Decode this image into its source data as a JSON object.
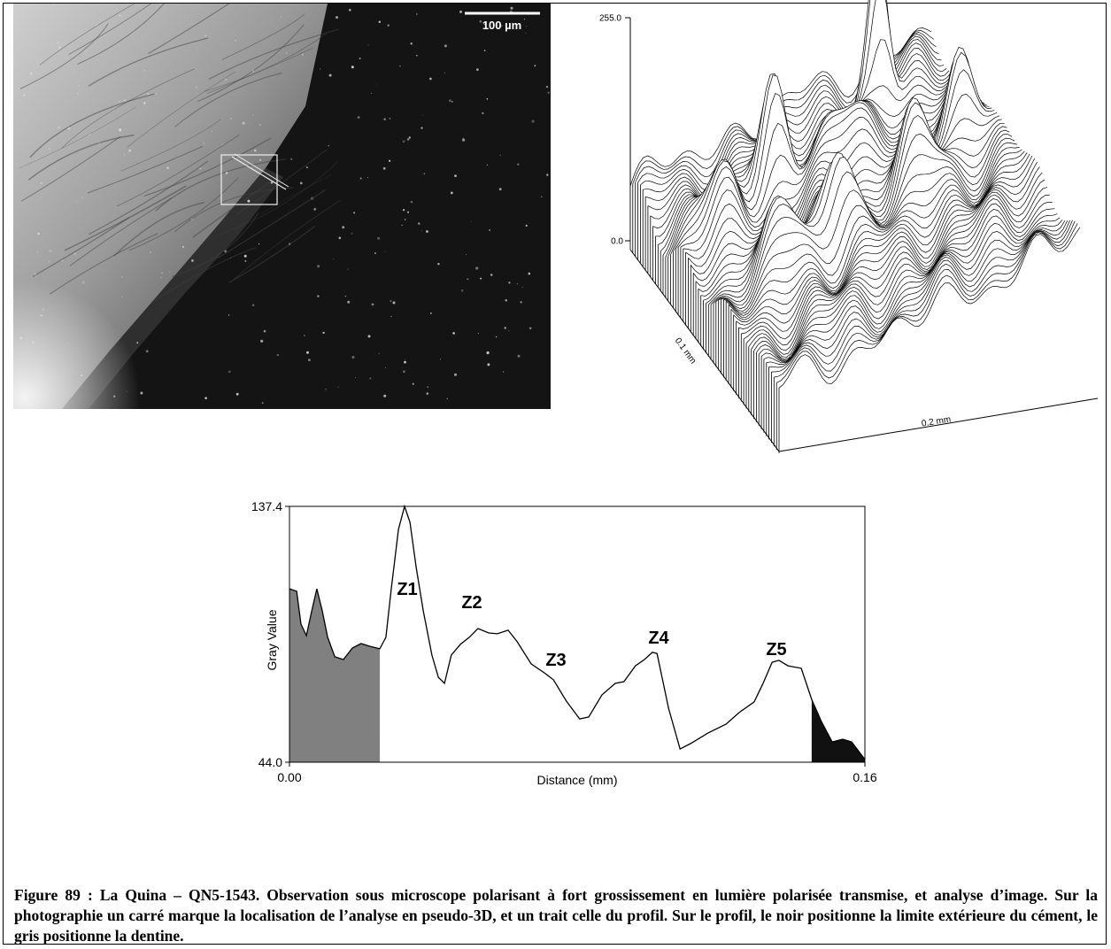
{
  "photo": {
    "scale_bar": "100 µm"
  },
  "surface_plot": {
    "z_max": "255.0",
    "z_min": "0.0",
    "depth_axis": "0.1 mm",
    "width_axis": "0.2 mm"
  },
  "chart_data": {
    "type": "line",
    "y_label": "Gray Value",
    "x_label": "Distance (mm)",
    "xlim": [
      0,
      0.16
    ],
    "xticks": [
      {
        "value": 0,
        "label": "0.00"
      },
      {
        "value": 0.16,
        "label": "0.16"
      }
    ],
    "ylim": [
      44.0,
      137.4
    ],
    "yticks": [
      {
        "value": 44.0,
        "label": "44.0"
      },
      {
        "value": 137.4,
        "label": "137.4"
      }
    ],
    "color": "#000000",
    "x": [
      0,
      0.002,
      0.0032,
      0.0047,
      0.0062,
      0.0076,
      0.0091,
      0.0106,
      0.0126,
      0.015,
      0.0175,
      0.0199,
      0.0224,
      0.0251,
      0.0268,
      0.0283,
      0.0303,
      0.032,
      0.0335,
      0.0352,
      0.0372,
      0.0396,
      0.0414,
      0.0431,
      0.045,
      0.0475,
      0.05,
      0.0524,
      0.0554,
      0.0578,
      0.0608,
      0.0633,
      0.0672,
      0.0709,
      0.0734,
      0.077,
      0.0807,
      0.0832,
      0.0869,
      0.0906,
      0.093,
      0.0962,
      0.0987,
      0.1009,
      0.1022,
      0.1054,
      0.1086,
      0.1115,
      0.1164,
      0.1214,
      0.125,
      0.1292,
      0.1317,
      0.1342,
      0.1361,
      0.1386,
      0.1423,
      0.1452,
      0.1479,
      0.1509,
      0.1538,
      0.1563,
      0.16
    ],
    "values": [
      107.3,
      106.4,
      94.4,
      90.2,
      99.3,
      107.3,
      99.3,
      89.6,
      82.5,
      81.5,
      85.7,
      87.3,
      86.3,
      85.4,
      89.6,
      107.3,
      129.0,
      137.4,
      131.6,
      115.4,
      99.3,
      83.1,
      75.0,
      72.8,
      83.1,
      87.0,
      89.6,
      92.8,
      91.2,
      90.9,
      92.2,
      88.0,
      79.9,
      76.6,
      74.1,
      66.3,
      59.8,
      60.5,
      68.6,
      72.8,
      73.4,
      79.2,
      81.5,
      84.1,
      83.7,
      63.7,
      48.8,
      50.8,
      54.7,
      57.9,
      62.1,
      66.0,
      72.8,
      80.5,
      81.2,
      79.2,
      78.3,
      66.9,
      58.9,
      51.4,
      52.4,
      51.4,
      45.0
    ],
    "fills": [
      {
        "color": "#808080",
        "from": 0,
        "to": 0.0251
      },
      {
        "color": "#111111",
        "from": 0.1452,
        "to": 0.16
      }
    ],
    "annotations": [
      "Z1",
      "Z2",
      "Z3",
      "Z4",
      "Z5"
    ]
  },
  "caption": "Figure 89 : La Quina – QN5-1543. Observation sous microscope polarisant à fort grossissement en lumière polarisée transmise, et analyse d’image. Sur la photographie un carré marque la localisation de l’analyse en pseudo-3D, et un trait celle du profil. Sur le profil, le noir positionne la limite extérieure du cément, le gris positionne la dentine."
}
